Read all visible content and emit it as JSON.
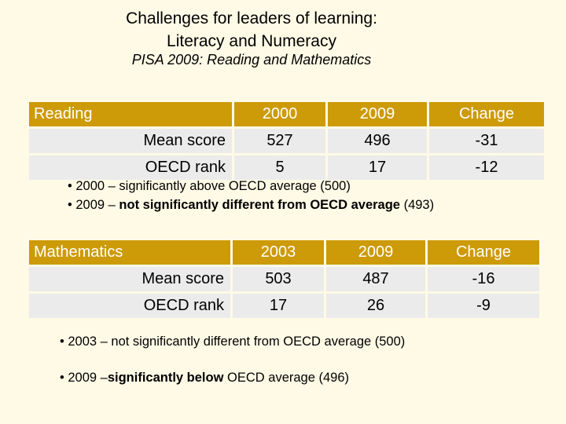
{
  "header": {
    "title_line1": "Challenges for leaders of learning:",
    "title_line2": "Literacy and Numeracy",
    "subtitle": "PISA 2009: Reading and Mathematics"
  },
  "reading": {
    "label": "Reading",
    "col1": "2000",
    "col2": "2009",
    "col3": "Change",
    "rows": [
      {
        "label": "Mean score",
        "v1": "527",
        "v2": "496",
        "v3": "-31"
      },
      {
        "label": "OECD rank",
        "v1": "5",
        "v2": "17",
        "v3": "-12"
      }
    ],
    "bullets": [
      {
        "prefix": "• 2000 – significantly above OECD average (500)",
        "bold": "",
        "suffix": ""
      },
      {
        "prefix": "• 2009 – ",
        "bold": "not significantly different from OECD average",
        "suffix": " (493)"
      }
    ]
  },
  "math": {
    "label": "Mathematics",
    "col1": "2003",
    "col2": "2009",
    "col3": "Change",
    "rows": [
      {
        "label": "Mean score",
        "v1": "503",
        "v2": "487",
        "v3": "-16"
      },
      {
        "label": "OECD rank",
        "v1": "17",
        "v2": "26",
        "v3": "-9"
      }
    ],
    "bullets": [
      {
        "prefix": "• 2003 – not significantly different from OECD average (500)",
        "bold": "",
        "suffix": ""
      },
      {
        "prefix": "• 2009 –",
        "bold": "significantly below",
        "suffix": " OECD average (496)"
      }
    ]
  }
}
